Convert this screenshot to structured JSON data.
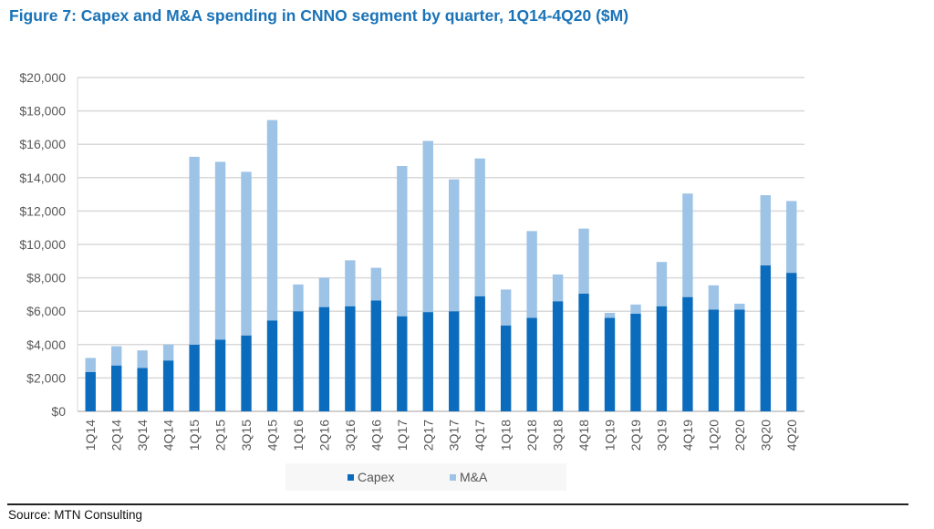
{
  "title": "Figure 7: Capex and M&A spending in CNNO segment by quarter, 1Q14-4Q20 ($M)",
  "source": "Source: MTN Consulting",
  "colors": {
    "title": "#1a73b8",
    "capex": "#0b6cbd",
    "ma": "#9dc3e6",
    "grid": "#d9d9d9",
    "axis_text": "#595959"
  },
  "chart_data": {
    "type": "bar",
    "stacked": true,
    "title": "Figure 7: Capex and M&A spending in CNNO segment by quarter, 1Q14-4Q20 ($M)",
    "xlabel": "",
    "ylabel": "",
    "ylim": [
      0,
      20000
    ],
    "yticks": [
      0,
      2000,
      4000,
      6000,
      8000,
      10000,
      12000,
      14000,
      16000,
      18000,
      20000
    ],
    "ytick_labels": [
      "$0",
      "$2,000",
      "$4,000",
      "$6,000",
      "$8,000",
      "$10,000",
      "$12,000",
      "$14,000",
      "$16,000",
      "$18,000",
      "$20,000"
    ],
    "grid": true,
    "legend_position": "bottom",
    "categories": [
      "1Q14",
      "2Q14",
      "3Q14",
      "4Q14",
      "1Q15",
      "2Q15",
      "3Q15",
      "4Q15",
      "1Q16",
      "2Q16",
      "3Q16",
      "4Q16",
      "1Q17",
      "2Q17",
      "3Q17",
      "4Q17",
      "1Q18",
      "2Q18",
      "3Q18",
      "4Q18",
      "1Q19",
      "2Q19",
      "3Q19",
      "4Q19",
      "1Q20",
      "2Q20",
      "3Q20",
      "4Q20"
    ],
    "series": [
      {
        "name": "Capex",
        "color": "#0b6cbd",
        "values": [
          2350,
          2750,
          2600,
          3050,
          4000,
          4300,
          4550,
          5450,
          6000,
          6250,
          6300,
          6650,
          5700,
          5950,
          6000,
          6900,
          5150,
          5600,
          6600,
          7050,
          5600,
          5850,
          6300,
          6850,
          6100,
          6100,
          8750,
          8300
        ]
      },
      {
        "name": "M&A",
        "color": "#9dc3e6",
        "values": [
          850,
          1150,
          1050,
          950,
          11250,
          10650,
          9800,
          12000,
          1600,
          1750,
          2750,
          1950,
          9000,
          10250,
          7900,
          8250,
          2150,
          5200,
          1600,
          3900,
          300,
          550,
          2650,
          6200,
          1450,
          350,
          4200,
          4300
        ]
      }
    ]
  }
}
